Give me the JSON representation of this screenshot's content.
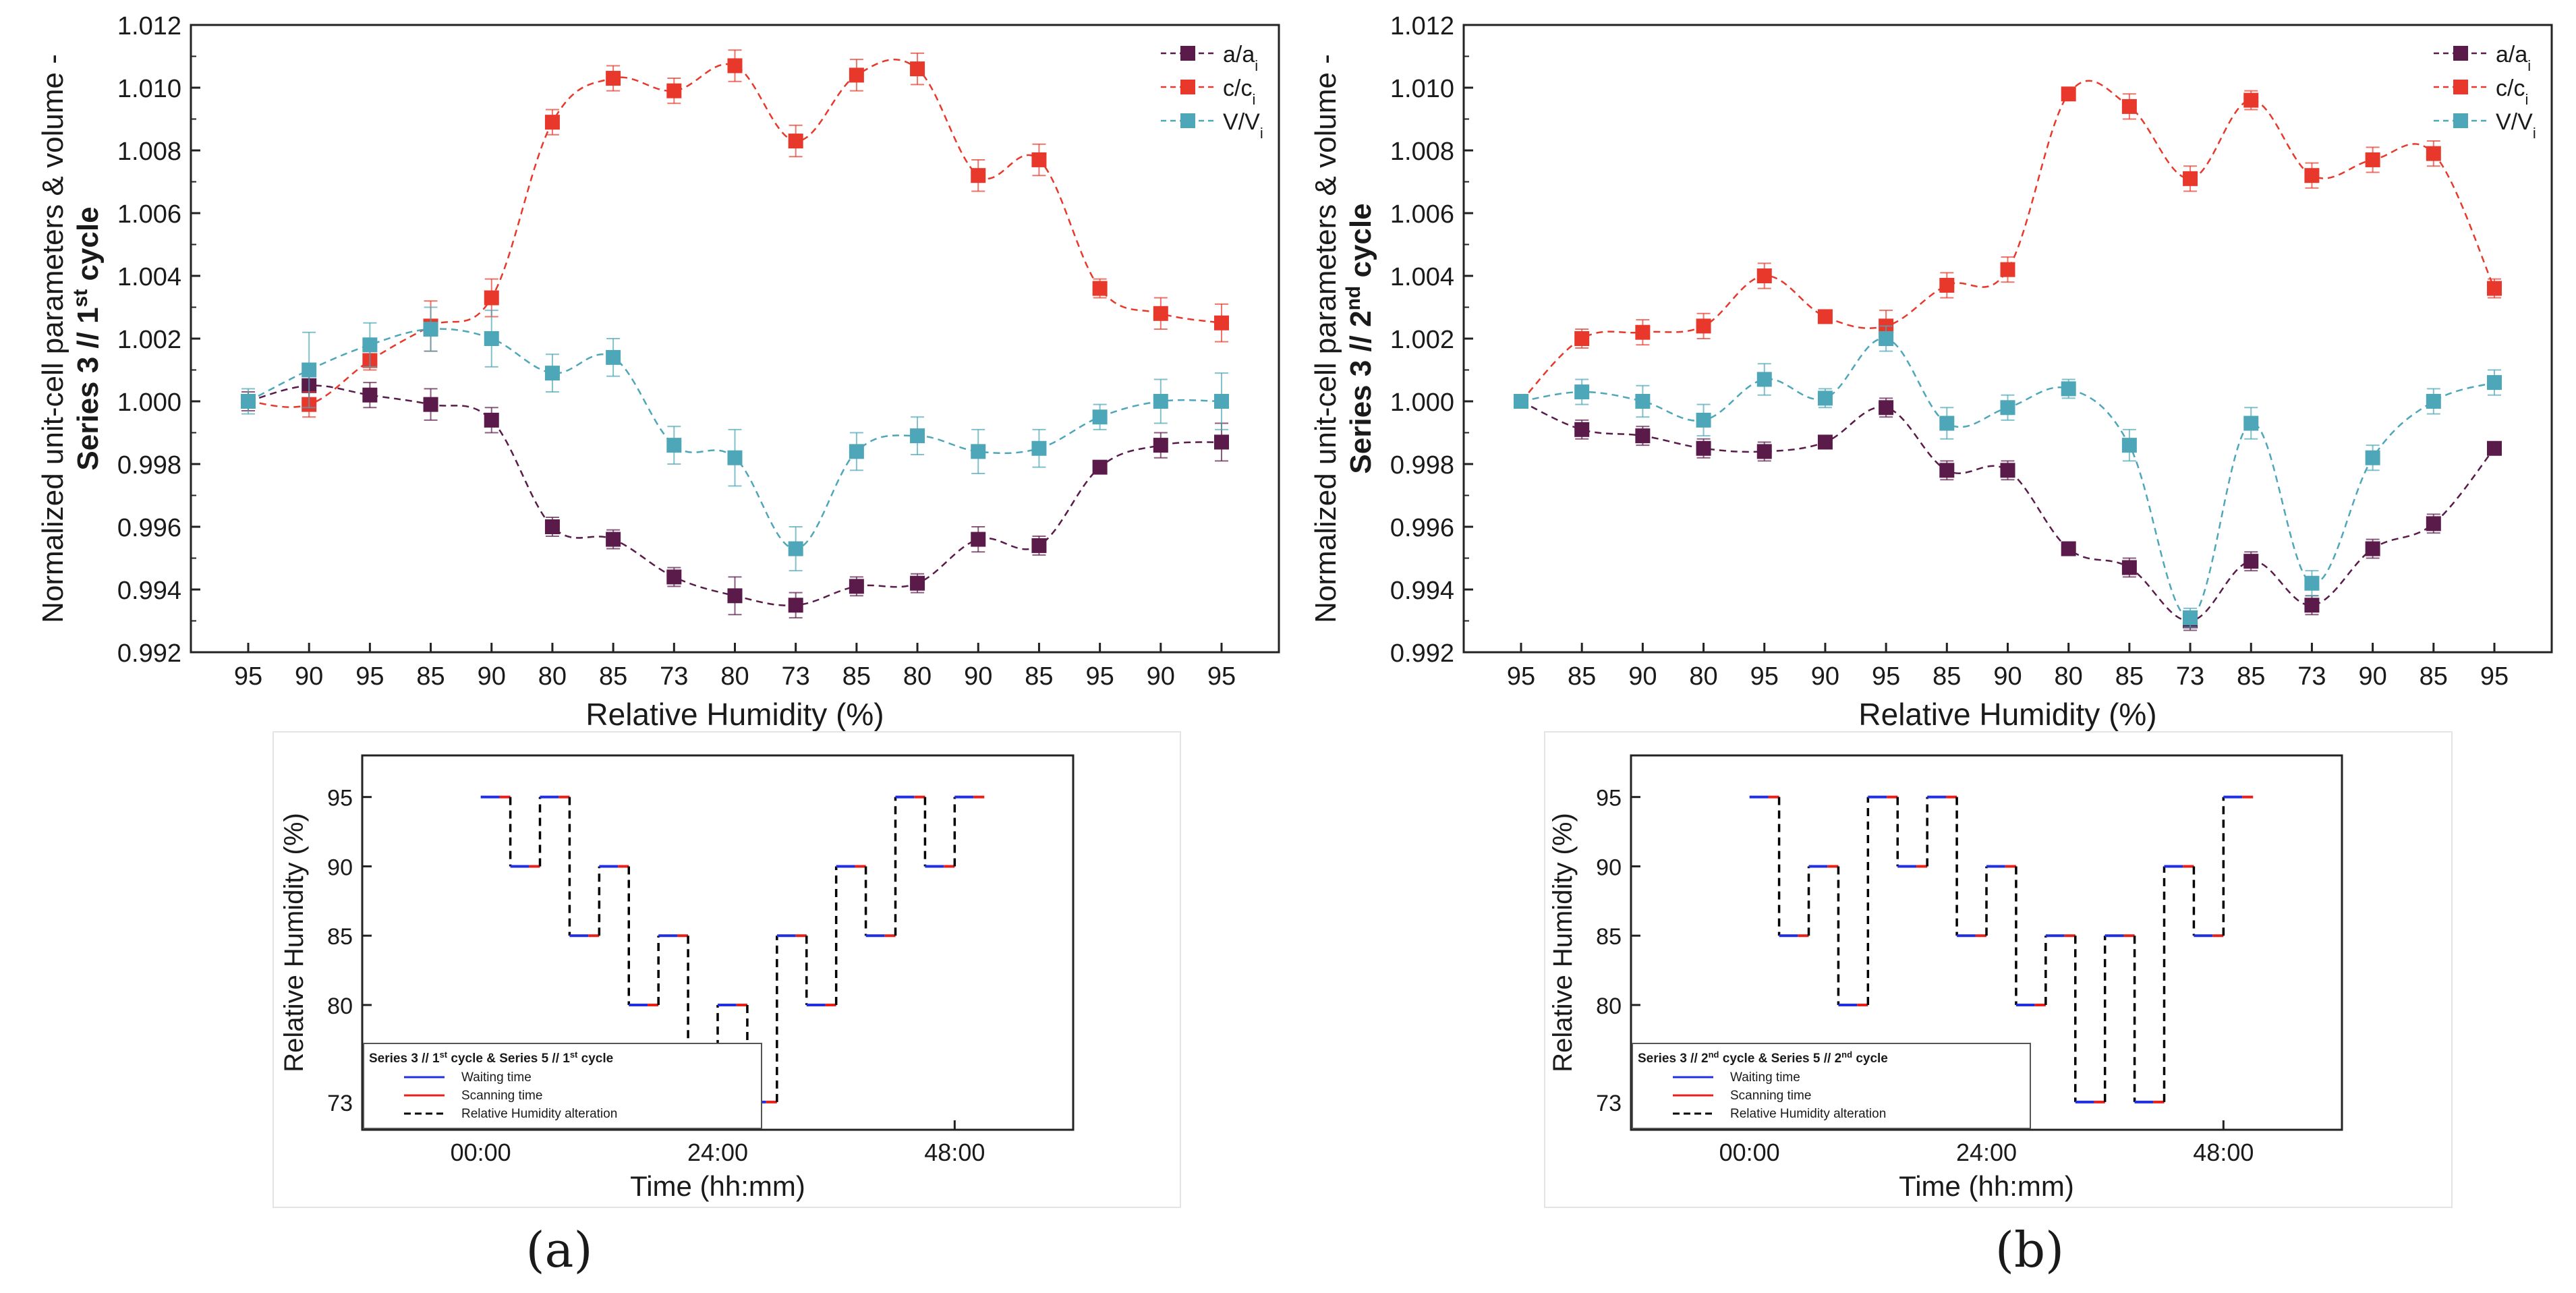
{
  "chart_data": [
    {
      "type": "line",
      "panel": "a",
      "ylabel_top": "Normalized unit-cell parameters & volume -",
      "ylabel_bottom": "Series 3 // 1st cycle",
      "xlabel": "Relative Humidity (%)",
      "categories": [
        "95",
        "90",
        "95",
        "85",
        "90",
        "80",
        "85",
        "73",
        "80",
        "73",
        "85",
        "80",
        "90",
        "85",
        "95",
        "90",
        "95"
      ],
      "ylim": [
        0.992,
        1.012
      ],
      "yticks": [
        "0.992",
        "0.994",
        "0.996",
        "0.998",
        "1.000",
        "1.002",
        "1.004",
        "1.006",
        "1.008",
        "1.010",
        "1.012"
      ],
      "series": [
        {
          "name": "a/ai",
          "color": "#5a1a4a",
          "values": [
            1.0,
            1.0005,
            1.0002,
            0.9999,
            0.9994,
            0.996,
            0.9956,
            0.9944,
            0.9938,
            0.9935,
            0.9941,
            0.9942,
            0.9956,
            0.9954,
            0.9979,
            0.9986,
            0.9987
          ],
          "errors": [
            0.0003,
            0.0004,
            0.0004,
            0.0005,
            0.0004,
            0.0003,
            0.0003,
            0.0003,
            0.0006,
            0.0004,
            0.0003,
            0.0003,
            0.0004,
            0.0003,
            0.0002,
            0.0004,
            0.0006
          ]
        },
        {
          "name": "c/ci",
          "color": "#e8382b",
          "values": [
            1.0,
            0.9999,
            1.0013,
            1.0024,
            1.0033,
            1.0089,
            1.0103,
            1.0099,
            1.0107,
            1.0083,
            1.0104,
            1.0106,
            1.0072,
            1.0077,
            1.0036,
            1.0028,
            1.0025
          ],
          "errors": [
            0.0002,
            0.0004,
            0.0003,
            0.0008,
            0.0006,
            0.0004,
            0.0004,
            0.0004,
            0.0005,
            0.0005,
            0.0005,
            0.0005,
            0.0005,
            0.0005,
            0.0003,
            0.0005,
            0.0006
          ]
        },
        {
          "name": "V/Vi",
          "color": "#4da7b9",
          "values": [
            1.0,
            1.001,
            1.0018,
            1.0023,
            1.002,
            1.0009,
            1.0014,
            0.9986,
            0.9982,
            0.9953,
            0.9984,
            0.9989,
            0.9984,
            0.9985,
            0.9995,
            1.0,
            1.0
          ],
          "errors": [
            0.0004,
            0.0012,
            0.0007,
            0.0007,
            0.0009,
            0.0006,
            0.0006,
            0.0006,
            0.0009,
            0.0007,
            0.0006,
            0.0006,
            0.0007,
            0.0006,
            0.0004,
            0.0007,
            0.0009
          ]
        }
      ],
      "legend": [
        "a/ai",
        "c/ci",
        "V/Vi"
      ]
    },
    {
      "type": "line",
      "panel": "b",
      "ylabel_top": "Normalized unit-cell parameters & volume -",
      "ylabel_bottom": "Series 3 // 2nd cycle",
      "xlabel": "Relative Humidity (%)",
      "categories": [
        "95",
        "85",
        "90",
        "80",
        "95",
        "90",
        "95",
        "85",
        "90",
        "80",
        "85",
        "73",
        "85",
        "73",
        "90",
        "85",
        "95"
      ],
      "ylim": [
        0.992,
        1.012
      ],
      "yticks": [
        "0.992",
        "0.994",
        "0.996",
        "0.998",
        "1.000",
        "1.002",
        "1.004",
        "1.006",
        "1.008",
        "1.010",
        "1.012"
      ],
      "series": [
        {
          "name": "a/ai",
          "color": "#5a1a4a",
          "values": [
            1.0,
            0.9991,
            0.9989,
            0.9985,
            0.9984,
            0.9987,
            0.9998,
            0.9978,
            0.9978,
            0.9953,
            0.9947,
            0.993,
            0.9949,
            0.9935,
            0.9953,
            0.9961,
            0.9985
          ],
          "errors": [
            0.0002,
            0.0003,
            0.0003,
            0.0003,
            0.0003,
            0.0002,
            0.0003,
            0.0003,
            0.0003,
            0.0002,
            0.0003,
            0.0003,
            0.0003,
            0.0003,
            0.0003,
            0.0003,
            0.0002
          ]
        },
        {
          "name": "c/ci",
          "color": "#e8382b",
          "values": [
            1.0,
            1.002,
            1.0022,
            1.0024,
            1.004,
            1.0027,
            1.0024,
            1.0037,
            1.0042,
            1.0098,
            1.0094,
            1.0071,
            1.0096,
            1.0072,
            1.0077,
            1.0079,
            1.0036
          ],
          "errors": [
            0.0002,
            0.0003,
            0.0004,
            0.0004,
            0.0004,
            0.0002,
            0.0005,
            0.0004,
            0.0004,
            0.0002,
            0.0004,
            0.0004,
            0.0003,
            0.0004,
            0.0004,
            0.0004,
            0.0003
          ]
        },
        {
          "name": "V/Vi",
          "color": "#4da7b9",
          "values": [
            1.0,
            1.0003,
            1.0,
            0.9994,
            1.0007,
            1.0001,
            1.002,
            0.9993,
            0.9998,
            1.0004,
            0.9986,
            0.9931,
            0.9993,
            0.9942,
            0.9982,
            1.0,
            1.0006
          ],
          "errors": [
            0.0002,
            0.0004,
            0.0005,
            0.0005,
            0.0005,
            0.0003,
            0.0004,
            0.0005,
            0.0004,
            0.0003,
            0.0005,
            0.0003,
            0.0005,
            0.0004,
            0.0004,
            0.0004,
            0.0004
          ]
        }
      ],
      "legend": [
        "a/ai",
        "c/ci",
        "V/Vi"
      ]
    },
    {
      "type": "line",
      "panel": "a-inset",
      "ylabel": "Relative Humidity (%)",
      "xlabel": "Time (hh:mm)",
      "xticks": [
        "00:00",
        "24:00",
        "48:00"
      ],
      "xlim": [
        -12,
        60
      ],
      "yticks": [
        "73",
        "80",
        "85",
        "90",
        "95"
      ],
      "ylim": [
        71,
        98
      ],
      "step_levels": [
        95,
        90,
        95,
        85,
        90,
        80,
        85,
        73,
        80,
        73,
        85,
        80,
        90,
        85,
        95,
        90,
        95
      ],
      "legend_title": "Series 3 // 1st cycle & Series 5 // 1st cycle",
      "legend": [
        "Waiting time",
        "Scanning time",
        "Relative Humidity alteration"
      ]
    },
    {
      "type": "line",
      "panel": "b-inset",
      "ylabel": "Relative Humidity (%)",
      "xlabel": "Time (hh:mm)",
      "xticks": [
        "00:00",
        "24:00",
        "48:00"
      ],
      "xlim": [
        -12,
        60
      ],
      "yticks": [
        "73",
        "80",
        "85",
        "90",
        "95"
      ],
      "ylim": [
        71,
        98
      ],
      "step_levels": [
        95,
        85,
        90,
        80,
        95,
        90,
        95,
        85,
        90,
        80,
        85,
        73,
        85,
        73,
        90,
        85,
        95
      ],
      "legend_title": "Series 3 // 2nd cycle & Series 5 // 2nd cycle",
      "legend": [
        "Waiting time",
        "Scanning time",
        "Relative Humidity alteration"
      ]
    }
  ],
  "labels": {
    "panel_a": "(a)",
    "panel_b": "(b)",
    "legend_a": "a/a",
    "legend_c": "c/c",
    "legend_v": "V/V",
    "legend_sub": "i",
    "series_word": "Series 3 // 1",
    "series_word_b": "Series 3 // 2",
    "sup_a": "st",
    "sup_b": "nd",
    "cycle_word": " cycle",
    "inset_title_a_1": "Series 3 // 1",
    "inset_title_a_2": " cycle & Series 5 // 1",
    "inset_title_a_3": " cycle",
    "inset_title_b_1": "Series 3 // 2",
    "inset_title_b_2": " cycle & Series 5 // 2",
    "inset_title_b_3": " cycle"
  },
  "colors": {
    "a": "#5a1a4a",
    "c": "#e8382b",
    "v": "#4da7b9",
    "waiting": "#2030e0",
    "scanning": "#e8201a",
    "alteration": "#000000"
  }
}
